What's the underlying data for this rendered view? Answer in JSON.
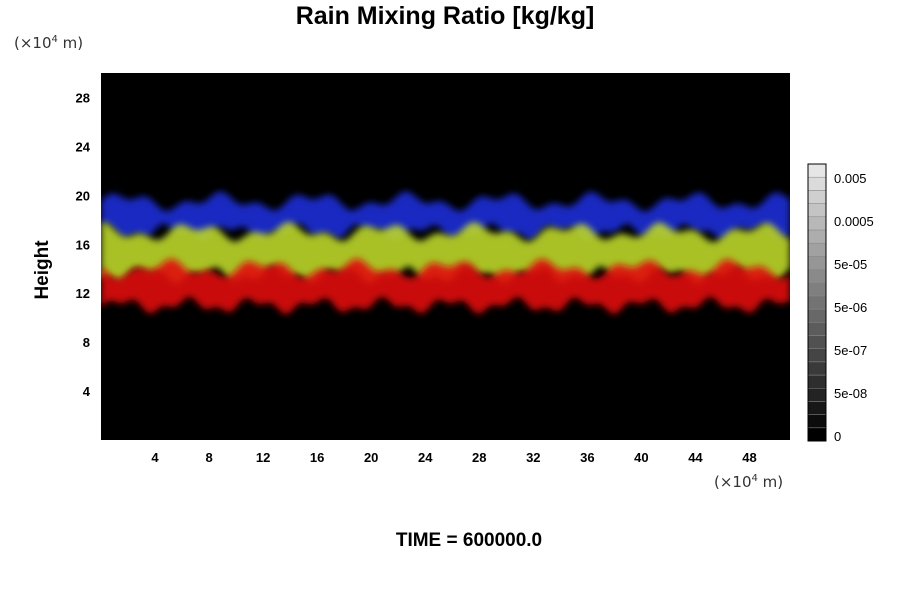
{
  "chart_data": {
    "type": "heatmap",
    "title": "Rain Mixing Ratio [kg/kg]",
    "ylabel": "Height",
    "xlabel": "",
    "x_unit_prefix": "(×10",
    "x_unit_exp": "4",
    "x_unit_suffix": " m)",
    "y_unit_prefix": "(×10",
    "y_unit_exp": "4",
    "y_unit_suffix": " m)",
    "xlim": [
      0,
      51
    ],
    "ylim": [
      0,
      30
    ],
    "x_ticks": [
      4,
      8,
      12,
      16,
      20,
      24,
      28,
      32,
      36,
      40,
      44,
      48
    ],
    "y_ticks": [
      4,
      8,
      12,
      16,
      20,
      24,
      28
    ],
    "colorbar": {
      "labels": [
        "0.005",
        "0.0005",
        "5e-05",
        "5e-06",
        "5e-07",
        "5e-08",
        "0"
      ],
      "levels": 21
    },
    "bands": [
      {
        "color": "#1a2fd6",
        "y_range": [
          17,
          19.5
        ]
      },
      {
        "color": "#bcd62a",
        "y_range": [
          13.5,
          17
        ]
      },
      {
        "color": "#e01010",
        "y_range": [
          11,
          14
        ]
      }
    ],
    "footer": "TIME = 600000.0"
  }
}
